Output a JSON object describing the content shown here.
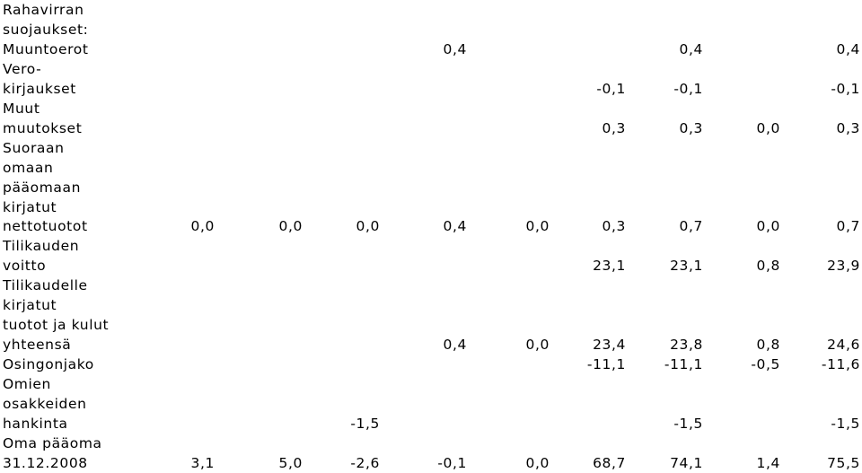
{
  "table": {
    "rows": [
      {
        "label": [
          "Rahavirran",
          "suojaukset:",
          "Muuntoerot"
        ],
        "cells": [
          null,
          null,
          null,
          "0,4",
          null,
          null,
          "0,4",
          null,
          "0,4"
        ]
      },
      {
        "label": [
          "Vero-",
          "kirjaukset"
        ],
        "cells": [
          null,
          null,
          null,
          null,
          null,
          "-0,1",
          "-0,1",
          null,
          "-0,1"
        ]
      },
      {
        "label": [
          "Muut",
          "muutokset"
        ],
        "cells": [
          null,
          null,
          null,
          null,
          null,
          "0,3",
          "0,3",
          "0,0",
          "0,3"
        ]
      },
      {
        "label": [
          "Suoraan",
          "omaan",
          "pääomaan",
          "kirjatut",
          "nettotuotot"
        ],
        "cells": [
          "0,0",
          "0,0",
          "0,0",
          "0,4",
          "0,0",
          "0,3",
          "0,7",
          "0,0",
          "0,7"
        ]
      },
      {
        "label": [
          "Tilikauden",
          "voitto"
        ],
        "cells": [
          null,
          null,
          null,
          null,
          null,
          "23,1",
          "23,1",
          "0,8",
          "23,9"
        ]
      },
      {
        "label": [
          "Tilikaudelle",
          "kirjatut",
          "tuotot ja kulut",
          "yhteensä"
        ],
        "cells": [
          null,
          null,
          null,
          "0,4",
          "0,0",
          "23,4",
          "23,8",
          "0,8",
          "24,6"
        ]
      },
      {
        "label": [
          "Osingonjako"
        ],
        "cells": [
          null,
          null,
          null,
          null,
          null,
          "-11,1",
          "-11,1",
          "-0,5",
          "-11,6"
        ]
      },
      {
        "label": [
          "Omien",
          "osakkeiden",
          "hankinta"
        ],
        "cells": [
          null,
          null,
          "-1,5",
          null,
          null,
          null,
          "-1,5",
          null,
          "-1,5"
        ]
      },
      {
        "label": [
          "Oma pääoma",
          "31.12.2008"
        ],
        "cells": [
          "3,1",
          "5,0",
          "-2,6",
          "-0,1",
          "0,0",
          "68,7",
          "74,1",
          "1,4",
          "75,5"
        ]
      }
    ]
  }
}
